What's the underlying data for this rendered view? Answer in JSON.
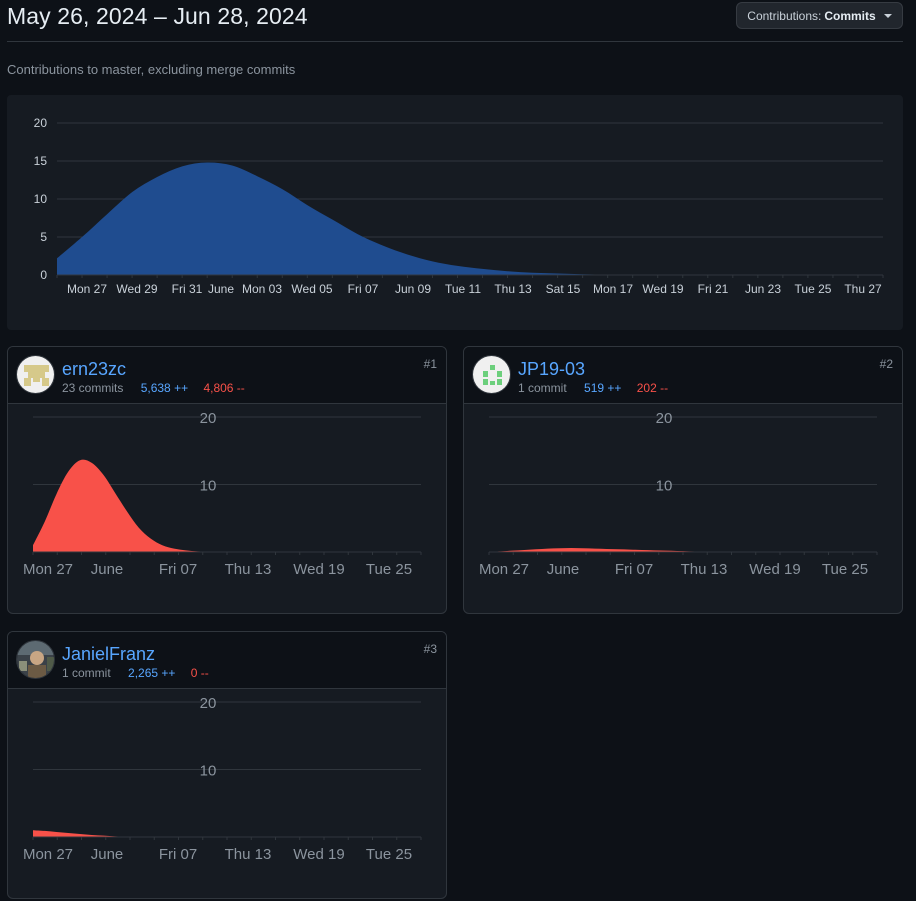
{
  "header": {
    "title": "May 26, 2024 – Jun 28, 2024",
    "subtitle": "Contributions to master, excluding merge commits",
    "dropdown_prefix": "Contributions:",
    "dropdown_value": "Commits"
  },
  "chart_data": [
    {
      "type": "area",
      "title": "",
      "x_labels": [
        "Mon 27",
        "Wed 29",
        "Fri 31",
        "June",
        "Mon 03",
        "Wed 05",
        "Fri 07",
        "Jun 09",
        "Tue 11",
        "Thu 13",
        "Sat 15",
        "Mon 17",
        "Wed 19",
        "Fri 21",
        "Jun 23",
        "Tue 25",
        "Thu 27"
      ],
      "y_ticks": [
        0,
        5,
        10,
        15,
        20
      ],
      "ylim": [
        0,
        20
      ],
      "color": "#1f4c8f",
      "series": [
        {
          "values": [
            2.2,
            5,
            8,
            10.9,
            12.9,
            14.3,
            14.8,
            14.4,
            13,
            11.3,
            9.2,
            7.3,
            5.4,
            3.9,
            2.7,
            1.8,
            1.2,
            0.8,
            0.5,
            0.3,
            0.2,
            0.1,
            0.05,
            0,
            0,
            0,
            0,
            0,
            0,
            0,
            0,
            0,
            0,
            0
          ]
        }
      ],
      "grid": true
    },
    {
      "type": "area",
      "title": "",
      "x_labels": [
        "Mon 27",
        "June",
        "Fri 07",
        "Thu 13",
        "Wed 19",
        "Tue 25"
      ],
      "y_ticks": [
        10,
        20
      ],
      "ylim": [
        0,
        20
      ],
      "color": "#f85149",
      "series": [
        {
          "values": [
            1,
            4.5,
            8.6,
            11.9,
            13.6,
            13.2,
            11.4,
            8.7,
            6,
            3.6,
            2,
            1,
            0.5,
            0.25,
            0.1,
            0.05,
            0,
            0,
            0,
            0,
            0,
            0,
            0,
            0,
            0,
            0,
            0,
            0,
            0,
            0,
            0,
            0,
            0,
            0
          ]
        }
      ],
      "grid": true
    },
    {
      "type": "area",
      "title": "",
      "x_labels": [
        "Mon 27",
        "June",
        "Fri 07",
        "Thu 13",
        "Wed 19",
        "Tue 25"
      ],
      "y_ticks": [
        10,
        20
      ],
      "ylim": [
        0,
        20
      ],
      "color": "#f85149",
      "series": [
        {
          "values": [
            0.05,
            0.1,
            0.2,
            0.3,
            0.4,
            0.5,
            0.55,
            0.6,
            0.55,
            0.5,
            0.45,
            0.4,
            0.35,
            0.3,
            0.25,
            0.2,
            0.15,
            0.1,
            0.05,
            0.03,
            0,
            0,
            0,
            0,
            0,
            0,
            0,
            0,
            0,
            0,
            0,
            0,
            0,
            0
          ]
        }
      ],
      "grid": true
    },
    {
      "type": "area",
      "title": "",
      "x_labels": [
        "Mon 27",
        "June",
        "Fri 07",
        "Thu 13",
        "Wed 19",
        "Tue 25"
      ],
      "y_ticks": [
        10,
        20
      ],
      "ylim": [
        0,
        20
      ],
      "color": "#f85149",
      "series": [
        {
          "values": [
            1,
            0.9,
            0.75,
            0.6,
            0.45,
            0.3,
            0.2,
            0.1,
            0.05,
            0,
            0,
            0,
            0,
            0,
            0,
            0,
            0,
            0,
            0,
            0,
            0,
            0,
            0,
            0,
            0,
            0,
            0,
            0,
            0,
            0,
            0,
            0,
            0,
            0
          ]
        }
      ],
      "grid": true
    }
  ],
  "contributors": [
    {
      "username": "ern23zc",
      "commits": "23 commits",
      "additions": "5,638 ++",
      "deletions": "4,806 --",
      "rank": "#1",
      "avatar_color": "#d6c98a"
    },
    {
      "username": "JP19-03",
      "commits": "1 commit",
      "additions": "519 ++",
      "deletions": "202 --",
      "rank": "#2",
      "avatar_color": "#6ccf7c"
    },
    {
      "username": "JanielFranz",
      "commits": "1 commit",
      "additions": "2,265 ++",
      "deletions": "0 --",
      "rank": "#3",
      "avatar_color": "#7a6f5c"
    }
  ]
}
